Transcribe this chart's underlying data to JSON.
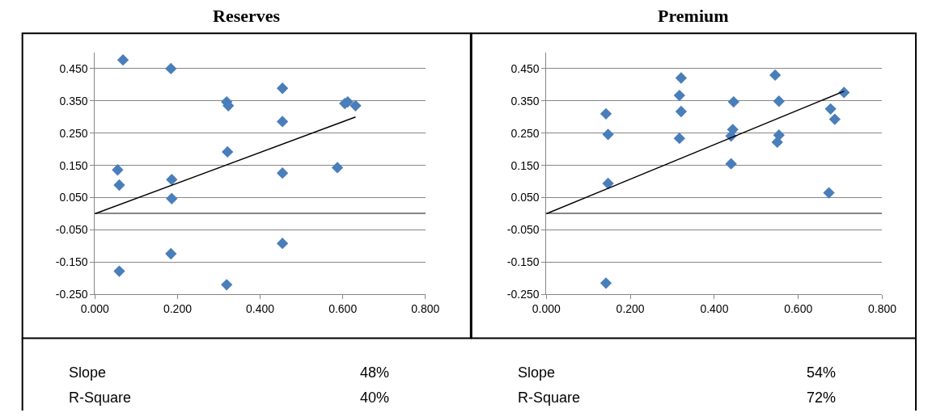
{
  "chart_data": [
    {
      "type": "scatter",
      "title": "Reserves",
      "xlim": [
        0,
        0.8
      ],
      "ylim": [
        -0.25,
        0.5
      ],
      "xticks": [
        {
          "value": 0,
          "label": "0.000"
        },
        {
          "value": 0.2,
          "label": "0.200"
        },
        {
          "value": 0.4,
          "label": "0.400"
        },
        {
          "value": 0.6,
          "label": "0.600"
        },
        {
          "value": 0.8,
          "label": "0.800"
        }
      ],
      "yticks": [
        {
          "value": -0.25,
          "label": "-0.250"
        },
        {
          "value": -0.15,
          "label": "-0.150"
        },
        {
          "value": -0.05,
          "label": "-0.050"
        },
        {
          "value": 0.05,
          "label": "0.050"
        },
        {
          "value": 0.15,
          "label": "0.150"
        },
        {
          "value": 0.25,
          "label": "0.250"
        },
        {
          "value": 0.35,
          "label": "0.350"
        },
        {
          "value": 0.45,
          "label": "0.450"
        }
      ],
      "grid": "y",
      "series": [
        {
          "marker": "diamond",
          "color": "#4a7ebb",
          "x": [
            0.068,
            0.184,
            0.319,
            0.323,
            0.454,
            0.454,
            0.605,
            0.612,
            0.631,
            0.321,
            0.454,
            0.587,
            0.055,
            0.059,
            0.186,
            0.186,
            0.454,
            0.184,
            0.059,
            0.319
          ],
          "values": [
            0.477,
            0.45,
            0.347,
            0.335,
            0.389,
            0.286,
            0.342,
            0.347,
            0.335,
            0.192,
            0.126,
            0.143,
            0.136,
            0.089,
            0.106,
            0.047,
            -0.092,
            -0.124,
            -0.178,
            -0.22
          ]
        },
        {
          "type": "line",
          "marker": "none",
          "color": "#000000",
          "x": [
            0,
            0.631
          ],
          "values": [
            0,
            0.3
          ]
        }
      ],
      "annotations": [
        "Slope",
        "48%",
        "R-Square",
        "40%"
      ]
    },
    {
      "type": "scatter",
      "title": "Premium",
      "xlim": [
        0,
        0.8
      ],
      "ylim": [
        -0.25,
        0.5
      ],
      "xticks": [
        {
          "value": 0,
          "label": "0.000"
        },
        {
          "value": 0.2,
          "label": "0.200"
        },
        {
          "value": 0.4,
          "label": "0.400"
        },
        {
          "value": 0.6,
          "label": "0.600"
        },
        {
          "value": 0.8,
          "label": "0.800"
        }
      ],
      "yticks": [
        {
          "value": -0.25,
          "label": "-0.250"
        },
        {
          "value": -0.15,
          "label": "-0.150"
        },
        {
          "value": -0.05,
          "label": "-0.050"
        },
        {
          "value": 0.05,
          "label": "0.050"
        },
        {
          "value": 0.15,
          "label": "0.150"
        },
        {
          "value": 0.25,
          "label": "0.250"
        },
        {
          "value": 0.35,
          "label": "0.350"
        },
        {
          "value": 0.45,
          "label": "0.450"
        }
      ],
      "grid": "y",
      "series": [
        {
          "marker": "diamond",
          "color": "#4a7ebb",
          "x": [
            0.142,
            0.147,
            0.147,
            0.142,
            0.321,
            0.317,
            0.321,
            0.317,
            0.446,
            0.444,
            0.44,
            0.44,
            0.545,
            0.554,
            0.554,
            0.55,
            0.709,
            0.677,
            0.687,
            0.673
          ],
          "values": [
            0.31,
            0.246,
            0.094,
            -0.215,
            0.421,
            0.367,
            0.317,
            0.234,
            0.347,
            0.261,
            0.241,
            0.155,
            0.43,
            0.349,
            0.244,
            0.222,
            0.376,
            0.325,
            0.293,
            0.065
          ]
        },
        {
          "type": "line",
          "marker": "none",
          "color": "#000000",
          "x": [
            0,
            0.709
          ],
          "values": [
            0,
            0.38
          ]
        }
      ],
      "annotations": [
        "Slope",
        "54%",
        "R-Square",
        "72%"
      ]
    }
  ]
}
